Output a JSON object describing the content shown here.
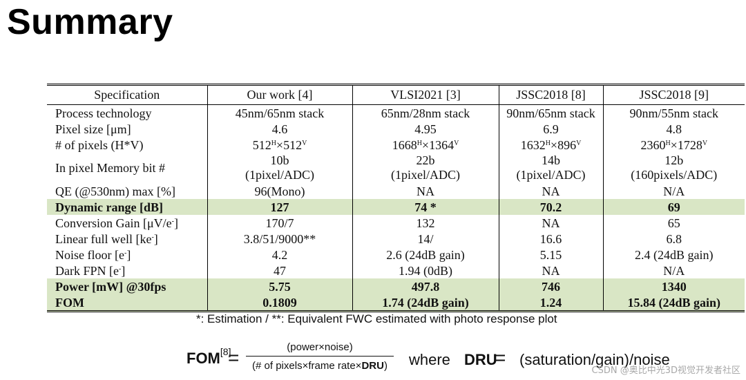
{
  "title": "Summary",
  "table": {
    "headers": [
      "Specification",
      "Our work [4]",
      "VLSI2021 [3]",
      "JSSC2018 [8]",
      "JSSC2018 [9]"
    ],
    "rows": [
      {
        "label": "Process technology",
        "values": [
          "45nm/65nm stack",
          "65nm/28nm stack",
          "90nm/65nm stack",
          "90nm/55nm stack"
        ]
      },
      {
        "label": "Pixel size [μm]",
        "values": [
          "4.6",
          "4.95",
          "6.9",
          "4.8"
        ]
      },
      {
        "label": "# of pixels (H*V)",
        "values": [
          {
            "h": "512",
            "v": "512"
          },
          {
            "h": "1668",
            "v": "1364"
          },
          {
            "h": "1632",
            "v": "896"
          },
          {
            "h": "2360",
            "v": "1728"
          }
        ],
        "sup_h": "H",
        "sup_v": "V",
        "times": "×"
      },
      {
        "label": "In pixel Memory bit #",
        "values": [
          {
            "line1": "10b",
            "line2": "(1pixel/ADC)"
          },
          {
            "line1": "22b",
            "line2": "(1pixel/ADC)"
          },
          {
            "line1": "14b",
            "line2": "(1pixel/ADC)"
          },
          {
            "line1": "12b",
            "line2": "(160pixels/ADC)"
          }
        ]
      },
      {
        "label": "QE (@530nm) max  [%]",
        "values": [
          "96(Mono)",
          "NA",
          "NA",
          "N/A"
        ]
      },
      {
        "label": "Dynamic range [dB]",
        "values": [
          "127",
          "74 *",
          "70.2",
          "69"
        ],
        "highlight": true
      },
      {
        "label_main": "Conversion Gain [μV/e",
        "label_sup": "-",
        "label_end": "]",
        "values": [
          "170/7",
          "132",
          "NA",
          "65"
        ]
      },
      {
        "label_main": "Linear full well [ke",
        "label_sup": "-",
        "label_end": "]",
        "values": [
          "3.8/51/9000**",
          "14/",
          "16.6",
          "6.8"
        ]
      },
      {
        "label_main": "Noise floor [e",
        "label_sup": "-",
        "label_end": "]",
        "values": [
          "4.2",
          "2.6 (24dB gain)",
          "5.15",
          "2.4 (24dB gain)"
        ]
      },
      {
        "label_main": "Dark FPN [e",
        "label_sup": "-",
        "label_end": "]",
        "values": [
          "47",
          "1.94 (0dB)",
          "NA",
          "N/A"
        ]
      },
      {
        "label": "Power [mW] @30fps",
        "values": [
          "5.75",
          "497.8",
          "746",
          "1340"
        ],
        "highlight": true
      },
      {
        "label": "FOM",
        "values": [
          "0.1809",
          "1.74 (24dB gain)",
          "1.24",
          "15.84 (24dB gain)"
        ],
        "highlight": true
      }
    ]
  },
  "footnote": "*: Estimation / **: Equivalent FWC estimated with photo response plot",
  "formula": {
    "fom_label": "FOM",
    "fom_ref": "[8]",
    "equals": "=",
    "numerator": "(power×noise)",
    "denominator_pre": "(# of pixels×frame rate×",
    "denominator_bold": "DRU",
    "denominator_post": ")",
    "where": "where",
    "dru_label": "DRU",
    "dru_equals": "=",
    "dru_expr": "(saturation/gain)/noise"
  },
  "watermark": "CSDN @奥比中光3D视觉开发者社区"
}
